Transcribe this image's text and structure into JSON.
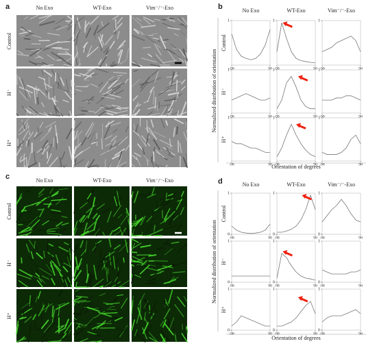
{
  "panels": [
    {
      "label": "a",
      "columns": [
        "No Exo",
        "WT-Exo",
        "Vim⁻/⁻-Exo"
      ],
      "rows": [
        "Control",
        "H⁻",
        "H⁺"
      ]
    },
    {
      "label": "b",
      "columns": [
        "No Exo",
        "WT-Exo",
        "Vim⁻/⁻-Exo"
      ],
      "rows": [
        "Control",
        "H⁻",
        "H⁺"
      ],
      "y_label": "Normalized distribution of orientation",
      "x_label": "Orientation of degrees",
      "yticks": [
        1
      ],
      "xticks": [
        -90,
        90
      ],
      "x": [
        -90,
        -67.5,
        -45,
        -22.5,
        0,
        22.5,
        45,
        67.5,
        90
      ],
      "curves": [
        [
          0.7,
          0.35,
          0.2,
          0.15,
          0.12,
          0.15,
          0.25,
          0.45,
          0.8
        ],
        [
          0.3,
          0.95,
          0.6,
          0.3,
          0.15,
          0.1,
          0.08,
          0.06,
          0.05
        ],
        [
          0.3,
          0.35,
          0.4,
          0.5,
          0.55,
          0.6,
          0.65,
          0.55,
          0.3
        ],
        [
          0.3,
          0.35,
          0.4,
          0.45,
          0.4,
          0.35,
          0.3,
          0.3,
          0.35
        ],
        [
          0.1,
          0.3,
          0.7,
          0.85,
          0.6,
          0.3,
          0.15,
          0.1,
          0.1
        ],
        [
          0.3,
          0.3,
          0.3,
          0.35,
          0.35,
          0.4,
          0.4,
          0.35,
          0.3
        ],
        [
          0.45,
          0.4,
          0.4,
          0.35,
          0.3,
          0.3,
          0.25,
          0.2,
          0.2
        ],
        [
          0.1,
          0.3,
          0.6,
          0.85,
          0.6,
          0.4,
          0.25,
          0.15,
          0.1
        ],
        [
          0.2,
          0.15,
          0.15,
          0.15,
          0.2,
          0.3,
          0.5,
          0.6,
          0.4
        ]
      ]
    },
    {
      "label": "c",
      "columns": [
        "No Exo",
        "WT-Exo",
        "Vim⁻/⁻-Exo"
      ],
      "rows": [
        "Control",
        "H⁻",
        "H⁺"
      ]
    },
    {
      "label": "d",
      "columns": [
        "No Exo",
        "WT-Exo",
        "Vim⁻/⁻-Exo"
      ],
      "rows": [
        "Control",
        "H⁻",
        "H⁺"
      ],
      "y_label": "Normalized distribution of orientation",
      "x_label": "Orientation of degrees",
      "yticks": [
        0,
        1
      ],
      "xticks": [
        -90,
        90
      ],
      "x": [
        -90,
        -67.5,
        -45,
        -22.5,
        0,
        22.5,
        45,
        67.5,
        90
      ],
      "curves": [
        [
          0.2,
          0.1,
          0.05,
          0.03,
          0.02,
          0.03,
          0.05,
          0.1,
          0.25
        ],
        [
          0.05,
          0.05,
          0.08,
          0.12,
          0.2,
          0.35,
          0.6,
          0.95,
          0.6
        ],
        [
          0.3,
          0.45,
          0.6,
          0.7,
          0.85,
          0.7,
          0.5,
          0.35,
          0.3
        ],
        [
          0.15,
          0.15,
          0.15,
          0.15,
          0.15,
          0.15,
          0.15,
          0.15,
          0.15
        ],
        [
          0.1,
          0.7,
          0.6,
          0.4,
          0.25,
          0.15,
          0.1,
          0.08,
          0.05
        ],
        [
          0.3,
          0.25,
          0.2,
          0.2,
          0.2,
          0.2,
          0.25,
          0.25,
          0.3
        ],
        [
          0.1,
          0.2,
          0.35,
          0.3,
          0.25,
          0.2,
          0.15,
          0.1,
          0.1
        ],
        [
          0.1,
          0.1,
          0.15,
          0.2,
          0.3,
          0.45,
          0.6,
          0.7,
          0.4
        ],
        [
          0.2,
          0.3,
          0.35,
          0.35,
          0.35,
          0.4,
          0.45,
          0.5,
          0.4
        ]
      ]
    }
  ]
}
